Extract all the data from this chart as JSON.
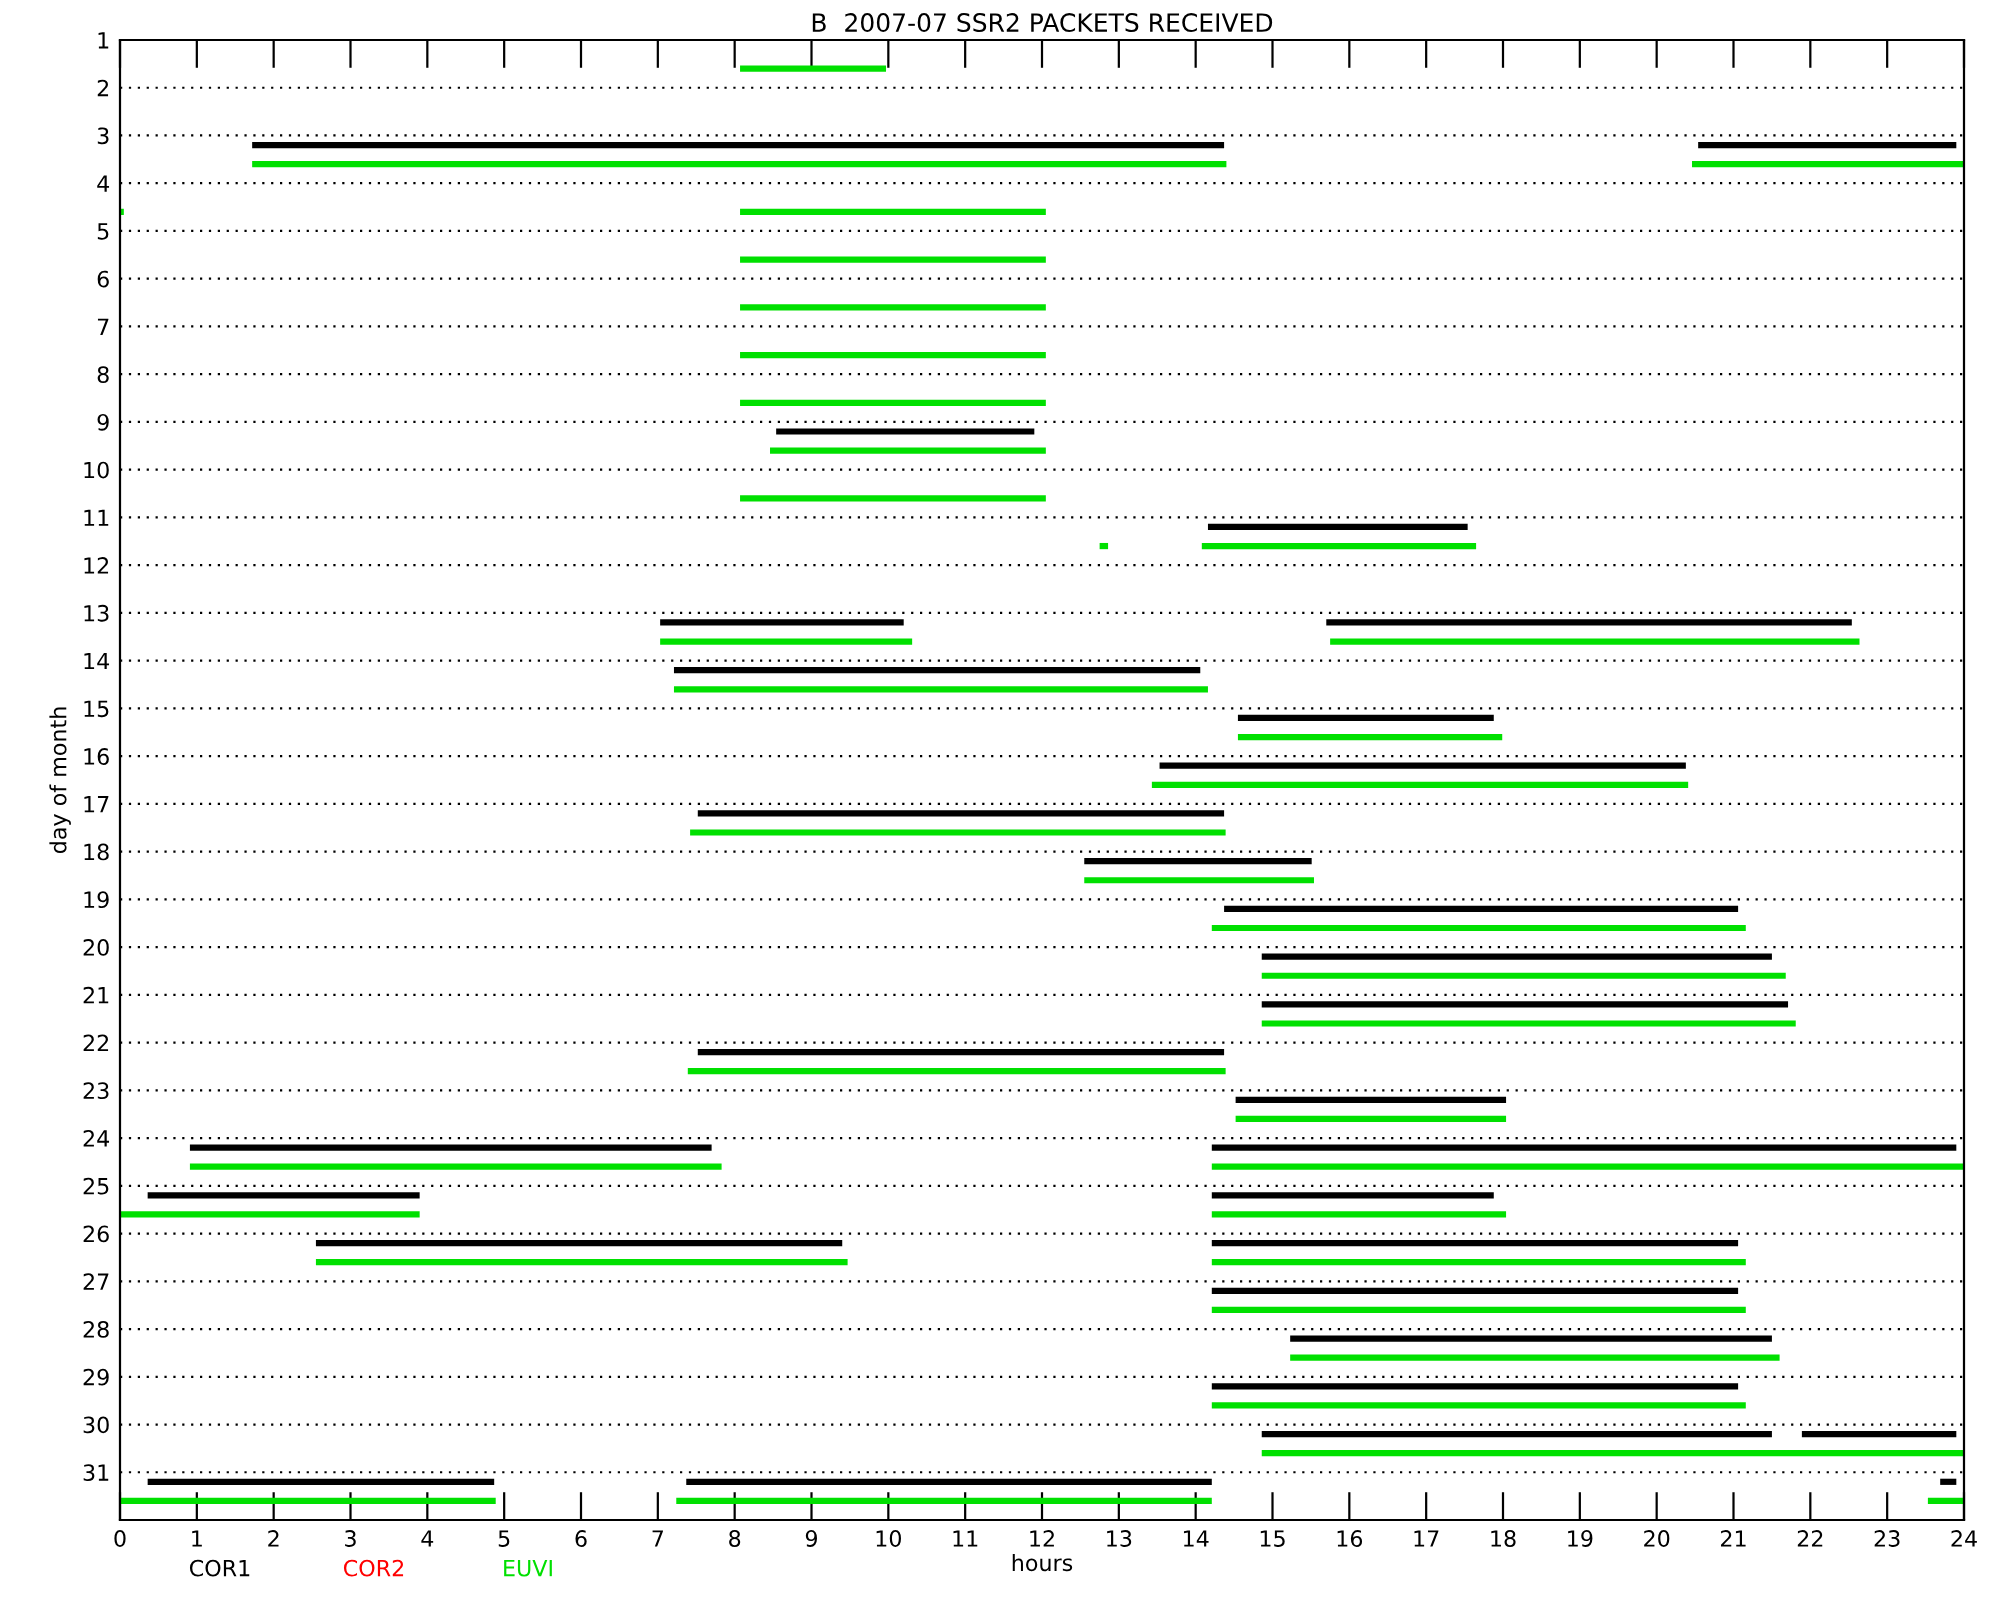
{
  "chart_data": {
    "type": "bar",
    "orientation": "horizontal",
    "title": "B  2007-07 SSR2 PACKETS RECEIVED",
    "xlabel": "hours",
    "ylabel": "day of month",
    "categories": [
      "1",
      "2",
      "3",
      "4",
      "5",
      "6",
      "7",
      "8",
      "9",
      "10",
      "11",
      "12",
      "13",
      "14",
      "15",
      "16",
      "17",
      "18",
      "19",
      "20",
      "21",
      "22",
      "23",
      "24",
      "25",
      "26",
      "27",
      "28",
      "29",
      "30",
      "31"
    ],
    "xlim": [
      0,
      24
    ],
    "xticks": [
      0,
      1,
      2,
      3,
      4,
      5,
      6,
      7,
      8,
      9,
      10,
      11,
      12,
      13,
      14,
      15,
      16,
      17,
      18,
      19,
      20,
      21,
      22,
      23,
      24
    ],
    "grid": "y",
    "legend": "bottom",
    "series": [
      {
        "name": "COR1",
        "color": "#000000",
        "base": [
          null,
          null,
          1.72,
          null,
          null,
          null,
          null,
          null,
          8.54,
          null,
          14.16,
          null,
          7.03,
          7.21,
          14.55,
          13.53,
          7.52,
          12.55,
          14.37,
          14.86,
          14.86,
          7.52,
          14.52,
          0.91,
          0.36,
          2.55,
          14.21,
          15.23,
          14.21,
          14.86,
          0.36
        ],
        "values": [
          null,
          null,
          12.65,
          null,
          null,
          null,
          null,
          null,
          3.36,
          null,
          3.38,
          null,
          3.17,
          6.85,
          3.33,
          6.85,
          6.85,
          2.96,
          6.69,
          6.64,
          6.85,
          6.85,
          3.52,
          6.79,
          3.54,
          6.85,
          6.85,
          6.27,
          6.85,
          6.64,
          4.51
        ]
      },
      {
        "color": "#000000",
        "base": [
          null,
          null,
          20.54,
          null,
          null,
          null,
          null,
          null,
          null,
          null,
          null,
          null,
          15.7,
          null,
          null,
          null,
          null,
          null,
          null,
          null,
          null,
          null,
          null,
          14.21,
          14.21,
          14.21,
          null,
          null,
          null,
          21.89,
          7.37
        ],
        "values": [
          null,
          null,
          3.36,
          null,
          null,
          null,
          null,
          null,
          null,
          null,
          null,
          null,
          6.84,
          null,
          null,
          null,
          null,
          null,
          null,
          null,
          null,
          null,
          null,
          9.69,
          3.67,
          6.85,
          null,
          null,
          null,
          2.01,
          6.84
        ]
      },
      {
        "color": "#000000",
        "base": [
          null,
          null,
          null,
          null,
          null,
          null,
          null,
          null,
          null,
          null,
          null,
          null,
          null,
          null,
          null,
          null,
          null,
          null,
          null,
          null,
          null,
          null,
          null,
          null,
          null,
          null,
          null,
          null,
          null,
          null,
          23.69
        ],
        "values": [
          null,
          null,
          null,
          null,
          null,
          null,
          null,
          null,
          null,
          null,
          null,
          null,
          null,
          null,
          null,
          null,
          null,
          null,
          null,
          null,
          null,
          null,
          null,
          null,
          null,
          null,
          null,
          null,
          null,
          null,
          0.21
        ]
      },
      {
        "name": "COR2",
        "color": "#ff0000",
        "base": [
          null,
          null,
          null,
          null,
          null,
          null,
          null,
          null,
          null,
          null,
          null,
          null,
          null,
          null,
          null,
          null,
          null,
          null,
          null,
          null,
          null,
          null,
          null,
          null,
          null,
          null,
          null,
          null,
          null,
          null,
          null
        ],
        "values": [
          null,
          null,
          null,
          null,
          null,
          null,
          null,
          null,
          null,
          null,
          null,
          null,
          null,
          null,
          null,
          null,
          null,
          null,
          null,
          null,
          null,
          null,
          null,
          null,
          null,
          null,
          null,
          null,
          null,
          null,
          null
        ]
      },
      {
        "name": "EUVI",
        "color": "#00e000",
        "base": [
          8.07,
          null,
          1.72,
          0,
          8.07,
          8.07,
          8.07,
          8.07,
          8.46,
          8.07,
          12.75,
          null,
          7.03,
          7.21,
          14.55,
          13.43,
          7.42,
          12.55,
          14.21,
          14.86,
          14.86,
          7.39,
          14.52,
          0.91,
          0,
          2.55,
          14.21,
          15.23,
          14.21,
          14.86,
          0
        ],
        "values": [
          1.9,
          null,
          12.68,
          0.05,
          3.98,
          3.98,
          3.98,
          3.98,
          3.59,
          3.98,
          0.11,
          null,
          3.28,
          6.95,
          3.44,
          6.98,
          6.97,
          2.99,
          6.95,
          6.82,
          6.95,
          7.0,
          3.52,
          6.92,
          3.9,
          6.92,
          6.95,
          6.37,
          6.95,
          9.14,
          4.89
        ]
      },
      {
        "color": "#00e000",
        "base": [
          null,
          null,
          20.46,
          8.07,
          null,
          null,
          null,
          null,
          null,
          null,
          14.08,
          null,
          15.75,
          null,
          null,
          null,
          null,
          null,
          null,
          null,
          null,
          null,
          null,
          14.21,
          14.21,
          14.21,
          null,
          null,
          null,
          null,
          7.24
        ],
        "values": [
          null,
          null,
          3.54,
          3.98,
          null,
          null,
          null,
          null,
          null,
          null,
          3.57,
          null,
          6.89,
          null,
          null,
          null,
          null,
          null,
          null,
          null,
          null,
          null,
          null,
          9.79,
          3.83,
          6.95,
          null,
          null,
          null,
          null,
          6.97
        ]
      },
      {
        "color": "#00e000",
        "base": [
          null,
          null,
          null,
          null,
          null,
          null,
          null,
          null,
          null,
          null,
          null,
          null,
          null,
          null,
          null,
          null,
          null,
          null,
          null,
          null,
          null,
          null,
          null,
          null,
          null,
          null,
          null,
          null,
          null,
          null,
          23.53
        ],
        "values": [
          null,
          null,
          null,
          null,
          null,
          null,
          null,
          null,
          null,
          null,
          null,
          null,
          null,
          null,
          null,
          null,
          null,
          null,
          null,
          null,
          null,
          null,
          null,
          null,
          null,
          null,
          null,
          null,
          null,
          null,
          0.47
        ]
      }
    ]
  }
}
